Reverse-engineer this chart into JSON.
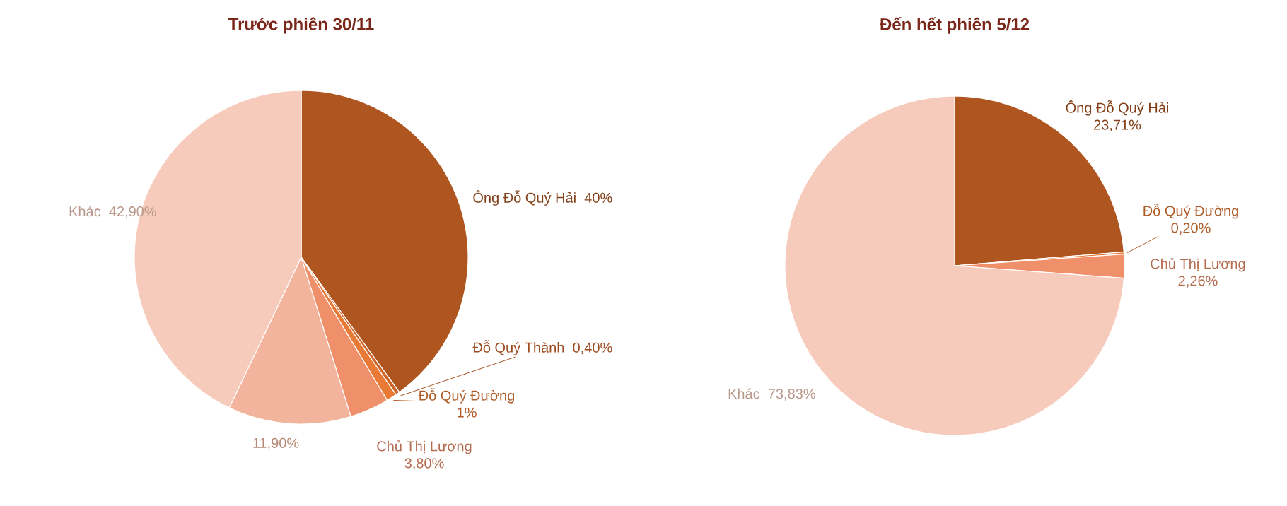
{
  "chart_data": [
    {
      "type": "pie",
      "title": "Trước phiên 30/11",
      "categories": [
        "Ông Đỗ Quý Hải",
        "Đỗ Quý Thành",
        "Đỗ Quý Đường",
        "Chủ Thị Lương",
        null,
        "Khác"
      ],
      "values": [
        40,
        0.4,
        1,
        3.8,
        11.9,
        42.9
      ],
      "value_labels": [
        "40%",
        "0,40%",
        "1%",
        "3,80%",
        "11,90%",
        "42,90%"
      ],
      "colors": [
        "#ae5520",
        "#d0662a",
        "#e87a35",
        "#f0906a",
        "#f2b49c",
        "#f6cbbb"
      ]
    },
    {
      "type": "pie",
      "title": "Đến hết phiên 5/12",
      "categories": [
        "Ông Đỗ Quý Hải",
        "Đỗ Quý Đường",
        "Chủ Thị Lương",
        "Khác"
      ],
      "values": [
        23.71,
        0.2,
        2.26,
        73.83
      ],
      "value_labels": [
        "23,71%",
        "0,20%",
        "2,26%",
        "73,83%"
      ],
      "colors": [
        "#ae5520",
        "#e87a35",
        "#f0906a",
        "#f6cbbb"
      ]
    }
  ]
}
